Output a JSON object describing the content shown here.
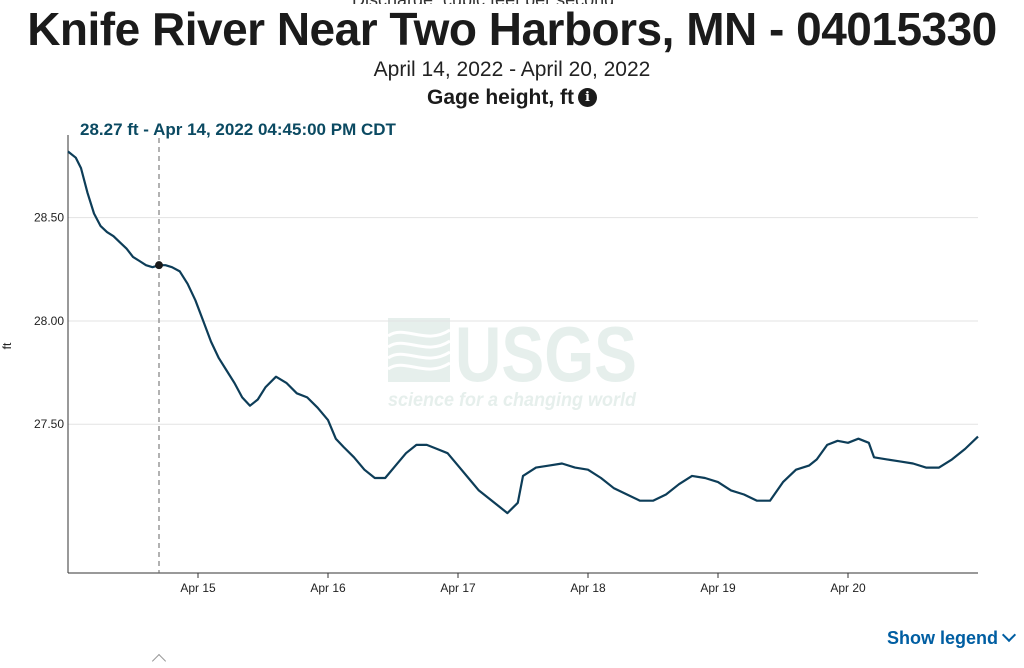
{
  "page": {
    "title": "Knife River Near Two Harbors, MN - 04015330",
    "date_range": "April 14, 2022 - April 20, 2022",
    "parameter": "Gage height, ft",
    "info_icon": "info-icon",
    "tooltip_text": "28.27 ft - Apr 14, 2022 04:45:00 PM CDT",
    "show_legend_label": "Show legend",
    "show_legend_icon": "chevron-down-icon"
  },
  "watermark": {
    "logo": "USGS",
    "tagline": "science for a changing world"
  },
  "colors": {
    "series": "#0d3d58",
    "tooltip": "#0b4a62",
    "link": "#005ea2",
    "grid": "#e3e3e3",
    "watermark": "#e6efec"
  },
  "chart_data": {
    "type": "line",
    "title": "Gage height, ft",
    "xlabel": "",
    "ylabel": "ft",
    "x_range_days": [
      14.0,
      21.0
    ],
    "ylim": [
      26.78,
      28.9
    ],
    "yticks": [
      {
        "value": 27.5,
        "label": "27.50"
      },
      {
        "value": 28.0,
        "label": "28.00"
      },
      {
        "value": 28.5,
        "label": "28.50"
      }
    ],
    "xticks": [
      {
        "value": 15,
        "label": "Apr 15"
      },
      {
        "value": 16,
        "label": "Apr 16"
      },
      {
        "value": 17,
        "label": "Apr 17"
      },
      {
        "value": 18,
        "label": "Apr 18"
      },
      {
        "value": 19,
        "label": "Apr 19"
      },
      {
        "value": 20,
        "label": "Apr 20"
      }
    ],
    "grid": true,
    "cursor": {
      "x": 14.7,
      "y": 28.27
    },
    "series": [
      {
        "x": [
          14.0,
          14.06,
          14.1,
          14.15,
          14.2,
          14.25,
          14.3,
          14.35,
          14.4,
          14.45,
          14.5,
          14.55,
          14.6,
          14.65,
          14.7,
          14.75,
          14.8,
          14.86,
          14.92,
          14.98,
          15.04,
          15.1,
          15.16,
          15.22,
          15.28,
          15.34,
          15.4,
          15.46,
          15.52,
          15.6,
          15.68,
          15.76,
          15.84,
          15.92,
          16.0,
          16.06,
          16.12,
          16.2,
          16.28,
          16.36,
          16.44,
          16.52,
          16.6,
          16.68,
          16.76,
          16.84,
          16.92,
          17.0,
          17.08,
          17.16,
          17.24,
          17.32,
          17.38,
          17.46,
          17.5,
          17.6,
          17.7,
          17.8,
          17.9,
          18.0,
          18.1,
          18.2,
          18.3,
          18.4,
          18.5,
          18.6,
          18.7,
          18.8,
          18.9,
          19.0,
          19.1,
          19.2,
          19.3,
          19.4,
          19.5,
          19.6,
          19.7,
          19.76,
          19.84,
          19.92,
          20.0,
          20.08,
          20.16,
          20.2,
          20.3,
          20.4,
          20.5,
          20.6,
          20.7,
          20.8,
          20.9,
          21.0
        ],
        "y": [
          28.82,
          28.79,
          28.74,
          28.62,
          28.52,
          28.46,
          28.43,
          28.41,
          28.38,
          28.35,
          28.31,
          28.29,
          28.27,
          28.26,
          28.27,
          28.27,
          28.26,
          28.24,
          28.18,
          28.1,
          28.0,
          27.9,
          27.82,
          27.76,
          27.7,
          27.63,
          27.59,
          27.62,
          27.68,
          27.73,
          27.7,
          27.65,
          27.63,
          27.58,
          27.52,
          27.43,
          27.39,
          27.34,
          27.28,
          27.24,
          27.24,
          27.3,
          27.36,
          27.4,
          27.4,
          27.38,
          27.36,
          27.3,
          27.24,
          27.18,
          27.14,
          27.1,
          27.07,
          27.12,
          27.25,
          27.29,
          27.3,
          27.31,
          27.29,
          27.28,
          27.24,
          27.19,
          27.16,
          27.13,
          27.13,
          27.16,
          27.21,
          27.25,
          27.24,
          27.22,
          27.18,
          27.16,
          27.13,
          27.13,
          27.22,
          27.28,
          27.3,
          27.33,
          27.4,
          27.42,
          27.41,
          27.43,
          27.41,
          27.34,
          27.33,
          27.32,
          27.31,
          27.29,
          27.29,
          27.33,
          27.38,
          27.44
        ]
      }
    ]
  }
}
